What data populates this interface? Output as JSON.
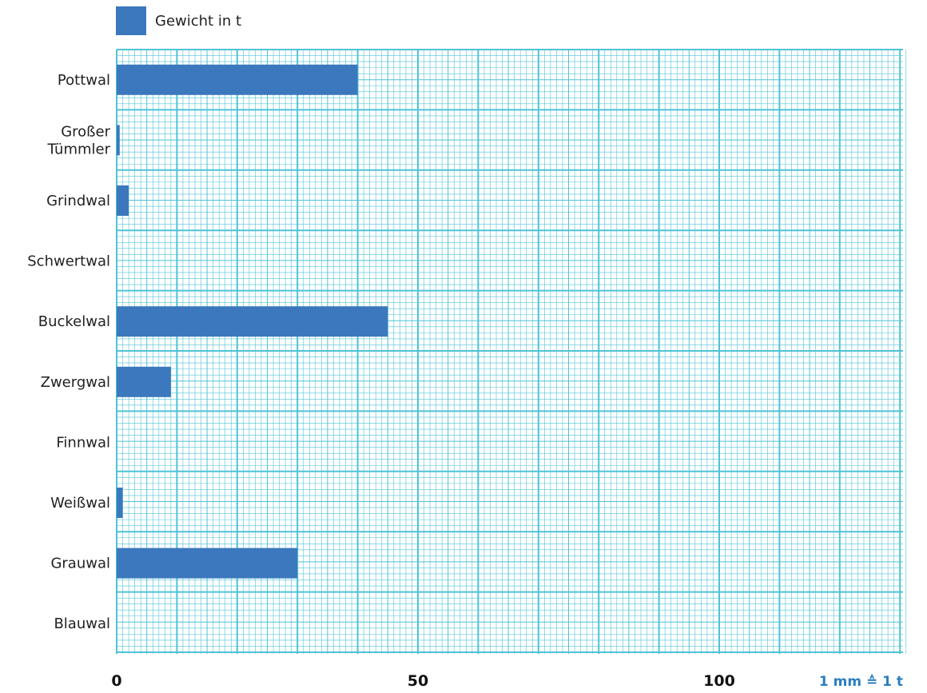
{
  "legend": {
    "label": "Gewicht in t",
    "color": "#3b78bd"
  },
  "scale_note": "1 mm ≙ 1 t",
  "colors": {
    "grid": "#4fc3d6",
    "bar": "#3b78bd"
  },
  "chart_data": {
    "type": "bar",
    "orientation": "horizontal",
    "categories": [
      [
        "Pottwal"
      ],
      [
        "Großer",
        "Tümmler"
      ],
      [
        "Grindwal"
      ],
      [
        "Schwertwal"
      ],
      [
        "Buckelwal"
      ],
      [
        "Zwergwal"
      ],
      [
        "Finnwal"
      ],
      [
        "Weißwal"
      ],
      [
        "Grauwal"
      ],
      [
        "Blauwal"
      ]
    ],
    "series": [
      {
        "name": "Gewicht in t",
        "values": [
          40,
          0.5,
          2,
          null,
          45,
          9,
          null,
          1,
          30,
          null
        ]
      }
    ],
    "xlim": [
      0,
      130
    ],
    "x_ticks": [
      0,
      50,
      100
    ],
    "grid": true,
    "legend_position": "top-left"
  }
}
